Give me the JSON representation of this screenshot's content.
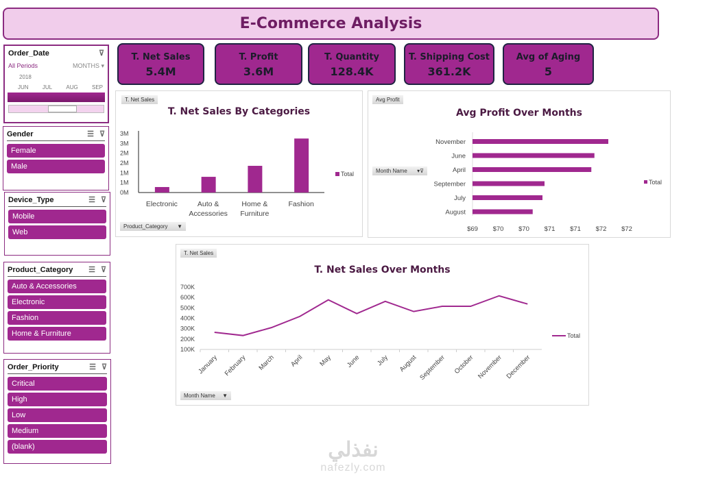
{
  "title": "E-Commerce Analysis",
  "kpis": [
    {
      "label": "T. Net Sales",
      "value": "5.4M"
    },
    {
      "label": "T. Profit",
      "value": "3.6M"
    },
    {
      "label": "T. Quantity",
      "value": "128.4K"
    },
    {
      "label": "T. Shipping Cost",
      "value": "361.2K"
    },
    {
      "label": "Avg of Aging",
      "value": "5"
    }
  ],
  "timeline": {
    "title": "Order_Date",
    "periods": "All Periods",
    "level": "MONTHS",
    "year": "2018",
    "months": [
      "JUN",
      "JUL",
      "AUG",
      "SEP"
    ]
  },
  "slicers": [
    {
      "title": "Gender",
      "items": [
        "Female",
        "Male"
      ]
    },
    {
      "title": "Device_Type",
      "items": [
        "Mobile",
        "Web"
      ]
    },
    {
      "title": "Product_Category",
      "items": [
        "Auto & Accessories",
        "Electronic",
        "Fashion",
        "Home & Furniture"
      ]
    },
    {
      "title": "Order_Priority",
      "items": [
        "Critical",
        "High",
        "Low",
        "Medium",
        "(blank)"
      ]
    }
  ],
  "colors": {
    "accent": "#a0288f",
    "title_bg": "#f1cdeb"
  },
  "chart_data": [
    {
      "type": "bar",
      "title": "T. Net Sales By Categories",
      "field_button": "T. Net Sales",
      "axis_button": "Product_Category",
      "categories": [
        "Electronic",
        "Auto & Accessories",
        "Home & Furniture",
        "Fashion"
      ],
      "values": [
        0.28,
        0.8,
        1.36,
        2.75
      ],
      "unit": "M",
      "yticks": [
        "0M",
        "1M",
        "1M",
        "2M",
        "2M",
        "3M",
        "3M"
      ],
      "ylim": [
        0,
        3
      ],
      "legend": "Total",
      "legend_position": "right"
    },
    {
      "type": "bar",
      "orientation": "horizontal",
      "title": "Avg Profit Over Months",
      "field_button": "Avg Profit",
      "axis_button": "Month Name",
      "categories": [
        "November",
        "June",
        "April",
        "September",
        "July",
        "August"
      ],
      "values": [
        71.64,
        71.37,
        71.31,
        70.4,
        70.36,
        70.17
      ],
      "xticks": [
        "$69",
        "$70",
        "$70",
        "$71",
        "$71",
        "$72",
        "$72"
      ],
      "xlim": [
        69,
        72
      ],
      "legend": "Total",
      "legend_position": "right"
    },
    {
      "type": "line",
      "title": "T. Net Sales Over Months",
      "field_button": "T. Net Sales",
      "axis_button": "Month Name",
      "categories": [
        "January",
        "February",
        "March",
        "April",
        "May",
        "June",
        "July",
        "August",
        "September",
        "October",
        "November",
        "December"
      ],
      "values": [
        265000,
        234000,
        310000,
        418000,
        577000,
        445000,
        563000,
        465000,
        515000,
        515000,
        616000,
        537000
      ],
      "yticks": [
        "100K",
        "200K",
        "300K",
        "400K",
        "500K",
        "600K",
        "700K"
      ],
      "ylim": [
        100000,
        700000
      ],
      "legend": "Total",
      "legend_position": "right"
    }
  ],
  "watermark": {
    "arabic": "نفذلي",
    "latin": "nafezly.com"
  }
}
